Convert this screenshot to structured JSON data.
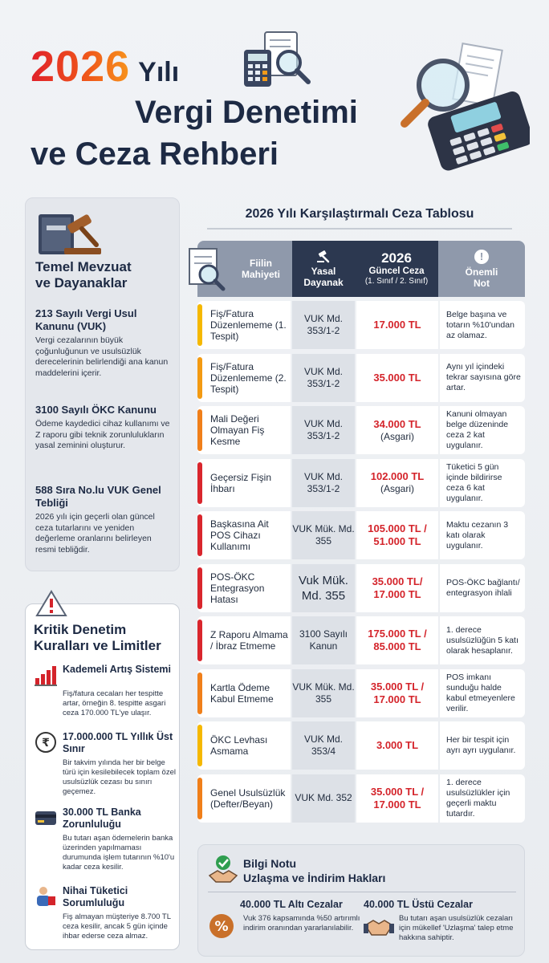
{
  "header": {
    "year": "2026",
    "title_part1": "Yılı",
    "title_part2": "Vergi Denetimi",
    "title_part3": "ve Ceza Rehberi"
  },
  "mevzuat": {
    "title_line1": "Temel Mevzuat",
    "title_line2": "ve Dayanaklar",
    "items": [
      {
        "title": "213 Sayılı Vergi Usul Kanunu (VUK)",
        "desc": "Vergi cezalarının büyük çoğunluğunun ve usulsüzlük derecelerinin belirlendiği ana kanun maddelerini içerir."
      },
      {
        "title": "3100 Sayılı ÖKC Kanunu",
        "desc": "Ödeme kaydedici cihaz kullanımı ve Z raporu gibi teknik zorunlulukların yasal zeminini oluşturur."
      },
      {
        "title": "588 Sıra No.lu VUK Genel Tebliği",
        "desc": "2026 yılı için geçerli olan güncel ceza tutarlarını ve yeniden değerleme oranlarını belirleyen resmi tebliğdir."
      }
    ]
  },
  "kurallar": {
    "title_line1": "Kritik Denetim",
    "title_line2": "Kuralları ve Limitler",
    "items": [
      {
        "title": "Kademeli Artış Sistemi",
        "desc": "Fiş/fatura cecaları her tespitte artar, örneğin 8. tespitte asgari ceza 170.000 TL'ye ulaşır."
      },
      {
        "title": "17.000.000 TL Yıllık Üst Sınır",
        "desc": "Bir takvim yılında her bir belge türü için kesilebilecek toplam özel usulsüzlük cezası bu sınırı geçemez."
      },
      {
        "title": "30.000 TL Banka Zorunluluğu",
        "desc": "Bu tutarı aşan ödemelerin banka üzerinden yapılmaması durumunda işlem tutarının %10'u kadar ceza kesilir."
      },
      {
        "title": "Nihai Tüketici Sorumluluğu",
        "desc": "Fiş almayan müşteriye 8.700 TL ceza kesilir, ancak 5 gün içinde ihbar ederse ceza almaz."
      }
    ]
  },
  "table": {
    "title": "2026 Yılı Karşılaştırmalı Ceza Tablosu",
    "headers": {
      "act_line1": "Fiilin",
      "act_line2": "Mahiyeti",
      "law_line1": "Yasal",
      "law_line2": "Dayanak",
      "fine_year": "2026",
      "fine_line1": "Güncel Ceza",
      "fine_line2": "(1. Sınıf / 2. Sınıf)",
      "note_line1": "Önemli",
      "note_line2": "Not"
    },
    "rows": [
      {
        "act": "Fiş/Fatura Düzenlememe (1. Tespit)",
        "law": "VUK Md. 353/1-2",
        "fine": "17.000 TL",
        "fine_extra": "",
        "note": "Belge başına ve totarın %10'undan az olamaz.",
        "bar": "#f5b800"
      },
      {
        "act": "Fiş/Fatura Düzenlememe (2. Tespit)",
        "law": "VUK Md. 353/1-2",
        "fine": "35.000 TL",
        "fine_extra": "",
        "note": "Aynı yıl içindeki tekrar sayısına göre artar.",
        "bar": "#f39a12"
      },
      {
        "act": "Mali Değeri Olmayan Fiş Kesme",
        "law": "VUK Md. 353/1-2",
        "fine": "34.000 TL",
        "fine_extra": "(Asgari)",
        "note": "Kanuni olmayan belge düzeninde ceza 2 kat uygulanır.",
        "bar": "#f07f1a"
      },
      {
        "act": "Geçersiz Fişin İhbarı",
        "law": "VUK Md. 353/1-2",
        "fine": "102.000 TL",
        "fine_extra": "(Asgari)",
        "note": "Tüketici 5 gün içinde bildirirse ceza 6 kat uygulanır.",
        "bar": "#d9262d"
      },
      {
        "act": "Başkasına Ait POS Cihazı Kullanımı",
        "law": "VUK Mük. Md. 355",
        "fine": "105.000 TL / 51.000 TL",
        "fine_extra": "",
        "note": "Maktu cezanın 3 katı olarak uygulanır.",
        "bar": "#d9262d"
      },
      {
        "act": "POS-ÖKC Entegrasyon Hatası",
        "law": "Vuk Mük. Md. 355",
        "fine": "35.000 TL/ 17.000 TL",
        "fine_extra": "",
        "note": "POS-ÖKC bağlantı/ entegrasyon ihlali",
        "bar": "#d9262d"
      },
      {
        "act": "Z Raporu Almama / İbraz Etmeme",
        "law": "3100 Sayılı Kanun",
        "fine": "175.000 TL / 85.000 TL",
        "fine_extra": "",
        "note": "1. derece usulsüzlüğün 5 katı olarak hesaplanır.",
        "bar": "#d9262d"
      },
      {
        "act": "Kartla Ödeme Kabul Etmeme",
        "law": "VUK Mük. Md. 355",
        "fine": "35.000 TL / 17.000 TL",
        "fine_extra": "",
        "note": "POS imkanı sunduğu halde kabul etmeyenlere verilir.",
        "bar": "#f07f1a"
      },
      {
        "act": "ÖKC Levhası Asmama",
        "law": "VUK Md. 353/4",
        "fine": "3.000 TL",
        "fine_extra": "",
        "note": "Her bir tespit için ayrı ayrı uygulanır.",
        "bar": "#f5b800"
      },
      {
        "act": "Genel Usulsüzlük (Defter/Beyan)",
        "law": "VUK Md. 352",
        "fine": "35.000 TL / 17.000 TL",
        "fine_extra": "",
        "note": "1. derece usulsüzlükler için geçerli maktu tutardır.",
        "bar": "#f07f1a"
      }
    ]
  },
  "info": {
    "title": "Bilgi Notu",
    "subtitle": "Uzlaşma ve İndirim Hakları",
    "left_title": "40.000 TL Altı Cezalar",
    "left_desc": "Vuk 376 kapsamında %50 artırımlı indirim oranından yararlanılabilir.",
    "right_title": "40.000 TL Üstü Cezalar",
    "right_desc": "Bu tutarı aşan usulsüzlük cezaları için mükellef 'Uzlaşma' talep etme hakkına sahiptir."
  }
}
